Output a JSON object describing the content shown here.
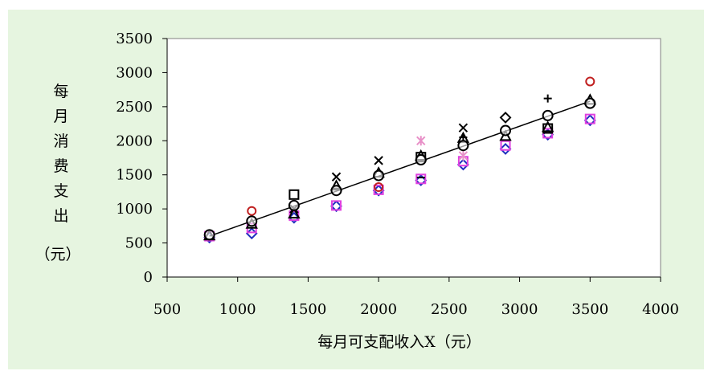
{
  "chart_data": {
    "type": "scatter",
    "title": "",
    "xlabel": "每月可支配收入X（元）",
    "ylabel_chars": [
      "每",
      "月",
      "消",
      "费",
      "支",
      "出"
    ],
    "ylabel_unit": "（元）",
    "xlim": [
      500,
      4000
    ],
    "ylim": [
      0,
      3500
    ],
    "xticks": [
      "500",
      "1000",
      "1500",
      "2000",
      "2500",
      "3000",
      "3500",
      "4000"
    ],
    "yticks": [
      "0",
      "500",
      "1000",
      "1500",
      "2000",
      "2500",
      "3000",
      "3500"
    ],
    "grid": false,
    "legend": "none",
    "series": [
      {
        "marker": "diamond",
        "color": "#1f2fbf",
        "points": [
          [
            800,
            580
          ],
          [
            1100,
            640
          ],
          [
            1400,
            870
          ],
          [
            1700,
            1040
          ],
          [
            2000,
            1270
          ],
          [
            2300,
            1420
          ],
          [
            2600,
            1650
          ],
          [
            2900,
            1880
          ],
          [
            3200,
            2090
          ],
          [
            3500,
            2300
          ]
        ]
      },
      {
        "marker": "square",
        "color": "#e040e0",
        "points": [
          [
            800,
            600
          ],
          [
            1100,
            720
          ],
          [
            1400,
            900
          ],
          [
            1700,
            1050
          ],
          [
            2000,
            1280
          ],
          [
            2300,
            1440
          ],
          [
            2600,
            1700
          ],
          [
            2900,
            1930
          ],
          [
            3200,
            2110
          ],
          [
            3500,
            2320
          ]
        ]
      },
      {
        "marker": "triangle",
        "color": "#000000",
        "points": [
          [
            800,
            610
          ],
          [
            1100,
            780
          ],
          [
            1400,
            930
          ],
          [
            1700,
            1340
          ],
          [
            2000,
            1530
          ],
          [
            2300,
            1780
          ],
          [
            2600,
            2040
          ],
          [
            2900,
            2070
          ],
          [
            3200,
            2200
          ],
          [
            3500,
            2600
          ]
        ]
      },
      {
        "marker": "cross",
        "color": "#000000",
        "points": [
          [
            1400,
            1000
          ],
          [
            1700,
            1470
          ],
          [
            2000,
            1710
          ],
          [
            2600,
            2190
          ]
        ]
      },
      {
        "marker": "asterisk",
        "color": "#e890c8",
        "points": [
          [
            2300,
            2000
          ],
          [
            2600,
            1780
          ]
        ]
      },
      {
        "marker": "circle-small",
        "color": "#c02020",
        "points": [
          [
            1100,
            970
          ],
          [
            2000,
            1320
          ],
          [
            3500,
            2870
          ]
        ]
      },
      {
        "marker": "plus",
        "color": "#000000",
        "points": [
          [
            3200,
            2620
          ],
          [
            2600,
            2050
          ]
        ]
      },
      {
        "marker": "dash",
        "color": "#000000",
        "points": [
          [
            2300,
            1460
          ],
          [
            1700,
            1300
          ]
        ]
      },
      {
        "marker": "square-black",
        "color": "#000000",
        "points": [
          [
            1400,
            1210
          ],
          [
            2300,
            1760
          ],
          [
            3200,
            2180
          ]
        ]
      },
      {
        "marker": "diamond-black",
        "color": "#000000",
        "points": [
          [
            2900,
            2340
          ]
        ]
      },
      {
        "marker": "circle-big",
        "color": "#000000",
        "points": [
          [
            800,
            620
          ],
          [
            1100,
            820
          ],
          [
            1400,
            1050
          ],
          [
            1700,
            1270
          ],
          [
            2000,
            1490
          ],
          [
            2300,
            1720
          ],
          [
            2600,
            1930
          ],
          [
            2900,
            2150
          ],
          [
            3200,
            2370
          ],
          [
            3500,
            2550
          ]
        ]
      }
    ],
    "regression_line": {
      "x": [
        800,
        3500
      ],
      "y": [
        600,
        2580
      ]
    }
  }
}
